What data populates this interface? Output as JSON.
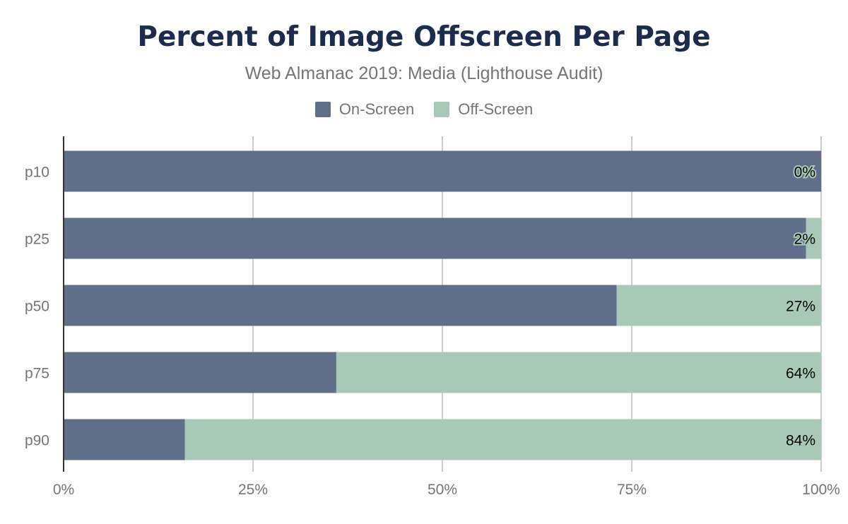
{
  "chart_data": {
    "type": "bar",
    "orientation": "horizontal",
    "stacked": true,
    "title": "Percent of Image Offscreen Per Page",
    "subtitle": "Web Almanac 2019: Media (Lighthouse Audit)",
    "categories": [
      "p10",
      "p25",
      "p50",
      "p75",
      "p90"
    ],
    "series": [
      {
        "name": "On-Screen",
        "color": "#5f6f8a",
        "values": [
          100,
          98,
          73,
          36,
          16
        ]
      },
      {
        "name": "Off-Screen",
        "color": "#a8c9b8",
        "values": [
          0,
          2,
          27,
          64,
          84
        ]
      }
    ],
    "data_labels": [
      "0%",
      "2%",
      "27%",
      "64%",
      "84%"
    ],
    "xlim": [
      0,
      100
    ],
    "x_ticks": [
      "0%",
      "25%",
      "50%",
      "75%",
      "100%"
    ],
    "grid": true,
    "legend_position": "top"
  }
}
